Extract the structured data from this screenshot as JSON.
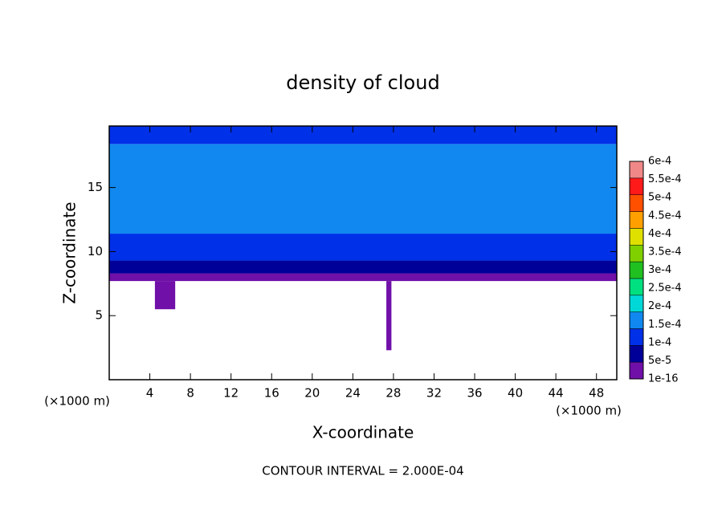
{
  "chart_data": {
    "type": "contour",
    "title": "density of cloud",
    "x_label": "X-coordinate",
    "y_label": "Z-coordinate",
    "x_unit": "(×1000 m)",
    "annotation": "CONTOUR INTERVAL = 2.000E-04",
    "xlim": [
      0,
      50
    ],
    "xticks": [
      4,
      8,
      12,
      16,
      20,
      24,
      28,
      32,
      36,
      40,
      44,
      48
    ],
    "ylim": [
      0,
      19.8
    ],
    "yticks": [
      5,
      10,
      15
    ],
    "colorbar": {
      "levels": [
        {
          "value": 1e-16,
          "label": "1e-16"
        },
        {
          "value": 5e-05,
          "label": "5e-5"
        },
        {
          "value": 0.0001,
          "label": "1e-4"
        },
        {
          "value": 0.00015,
          "label": "1.5e-4"
        },
        {
          "value": 0.0002,
          "label": "2e-4"
        },
        {
          "value": 0.00025,
          "label": "2.5e-4"
        },
        {
          "value": 0.0003,
          "label": "3e-4"
        },
        {
          "value": 0.00035,
          "label": "3.5e-4"
        },
        {
          "value": 0.0004,
          "label": "4e-4"
        },
        {
          "value": 0.00045,
          "label": "4.5e-4"
        },
        {
          "value": 0.0005,
          "label": "5e-4"
        },
        {
          "value": 0.00055,
          "label": "5.5e-4"
        },
        {
          "value": 0.0006,
          "label": "6e-4"
        }
      ],
      "colors": [
        "#7010a8",
        "#000098",
        "#0030e8",
        "#1088f0",
        "#00d8d8",
        "#00e080",
        "#20c020",
        "#80d000",
        "#e0e000",
        "#ffa000",
        "#ff5000",
        "#ff1a1a",
        "#f08888"
      ]
    },
    "layers": [
      {
        "zlim": [
          7.7,
          8.3
        ],
        "value": 1e-16
      },
      {
        "zlim": [
          8.3,
          9.3
        ],
        "value": 5e-05
      },
      {
        "zlim": [
          9.3,
          11.4
        ],
        "value": 0.0001
      },
      {
        "zlim": [
          11.4,
          18.4
        ],
        "value": 0.00015
      },
      {
        "zlim": [
          18.4,
          19.8
        ],
        "value": 0.0001
      }
    ],
    "patches": [
      {
        "xlim": [
          4.5,
          6.5
        ],
        "zlim": [
          5.5,
          7.7
        ],
        "value": 1e-16
      },
      {
        "xlim": [
          27.3,
          27.8
        ],
        "zlim": [
          2.3,
          7.7
        ],
        "value": 1e-16
      }
    ]
  }
}
